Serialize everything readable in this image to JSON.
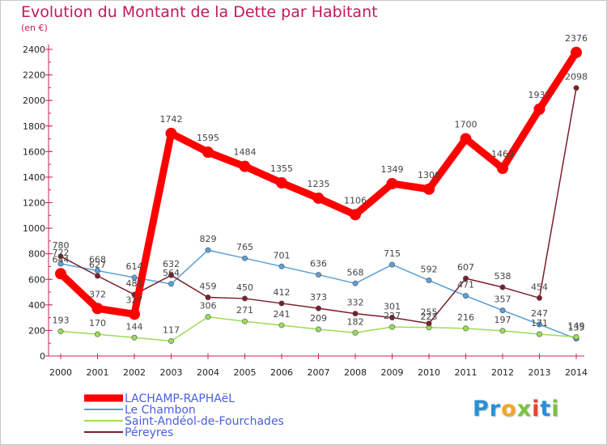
{
  "title": "Evolution du Montant de la Dette par Habitant",
  "unit": "(en €)",
  "logo": {
    "text": "Proxiti",
    "colors": [
      "#2a8fd6",
      "#2a8fd6",
      "#f5a623",
      "#7cc242",
      "#e8442e",
      "#2a8fd6",
      "#7cc242"
    ]
  },
  "chart_data": {
    "type": "line",
    "title": "Evolution du Montant de la Dette par Habitant",
    "ylabel": "(en €)",
    "xlabel": "",
    "x": [
      "2000",
      "2001",
      "2002",
      "2003",
      "2004",
      "2005",
      "2006",
      "2007",
      "2008",
      "2009",
      "2010",
      "2011",
      "2012",
      "2013",
      "2014"
    ],
    "ylim": [
      0,
      2400
    ],
    "yticks": [
      0,
      200,
      400,
      600,
      800,
      1000,
      1200,
      1400,
      1600,
      1800,
      2000,
      2200,
      2400
    ],
    "grid": false,
    "legend_position": "bottom-left",
    "series": [
      {
        "name": "LACHAMP-RAPHAëL",
        "color": "#ff0000",
        "values": [
          644,
          372,
          327,
          1742,
          1595,
          1484,
          1355,
          1235,
          1106,
          1349,
          1306,
          1700,
          1469,
          1932,
          2376
        ],
        "labels": [
          "644",
          "372",
          "327",
          "1742",
          "1595",
          "1484",
          "1355",
          "1235",
          "1106",
          "1349",
          "1306",
          "1700",
          "1469",
          "1932",
          "2376"
        ]
      },
      {
        "name": "Le Chambon",
        "color": "#5b9fd6",
        "values": [
          722,
          668,
          614,
          564,
          829,
          765,
          701,
          636,
          568,
          715,
          592,
          471,
          357,
          247,
          135
        ],
        "labels": [
          "722",
          "668",
          "614",
          "564",
          "829",
          "765",
          "701",
          "636",
          "568",
          "715",
          "592",
          "471",
          "357",
          "247",
          "135"
        ]
      },
      {
        "name": "Saint-Andéol-de-Fourchades",
        "color": "#99dd55",
        "values": [
          193,
          170,
          144,
          117,
          306,
          271,
          241,
          209,
          182,
          227,
          223,
          216,
          197,
          171,
          149
        ],
        "labels": [
          "193",
          "170",
          "144",
          "117",
          "306",
          "271",
          "241",
          "209",
          "182",
          "227",
          "223",
          "216",
          "197",
          "171",
          "149"
        ]
      },
      {
        "name": "Péreyres",
        "color": "#7a1f2b",
        "values": [
          780,
          627,
          481,
          632,
          459,
          450,
          412,
          373,
          332,
          301,
          255,
          607,
          538,
          454,
          2098
        ],
        "labels": [
          "780",
          "627",
          "481",
          "632",
          "459",
          "450",
          "412",
          "373",
          "332",
          "301",
          "255",
          "607",
          "538",
          "454",
          "2098"
        ]
      }
    ]
  }
}
